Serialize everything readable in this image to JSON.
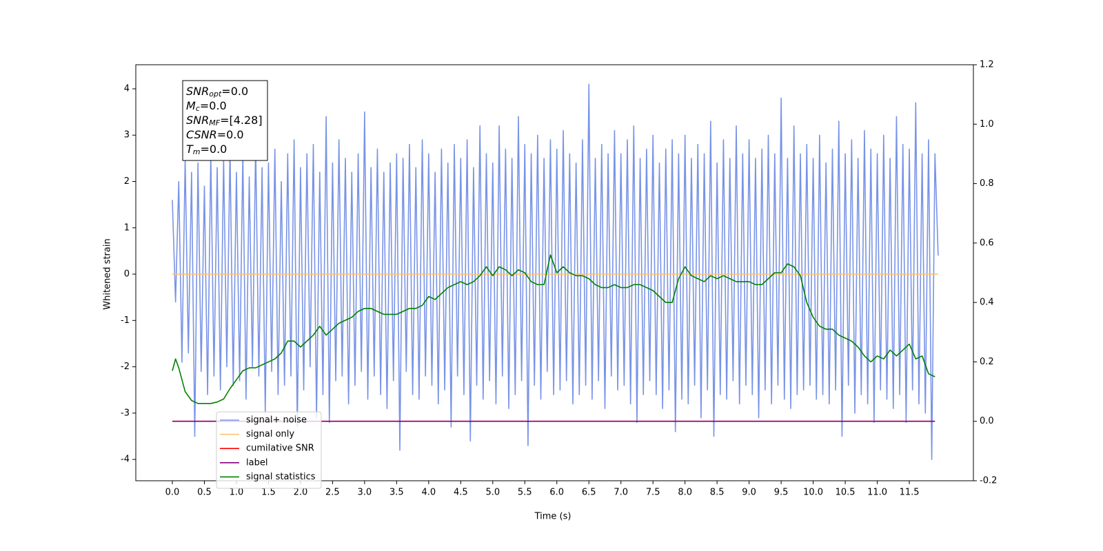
{
  "chart_data": {
    "type": "line",
    "xlabel": "Time (s)",
    "ylabel": "Whitened strain",
    "xlim": [
      -0.57,
      12.5
    ],
    "ylim": [
      -4.46,
      4.52
    ],
    "y2lim": [
      -0.2,
      1.2
    ],
    "xticks": [
      {
        "value": 0,
        "label": "0.0"
      },
      0.5,
      {
        "value": 1,
        "label": "1.0"
      },
      1.5,
      {
        "value": 2,
        "label": "2.0"
      },
      2.5,
      {
        "value": 3,
        "label": "3.0"
      },
      3.5,
      {
        "value": 4,
        "label": "4.0"
      },
      4.5,
      {
        "value": 5,
        "label": "5.0"
      },
      5.5,
      {
        "value": 6,
        "label": "6.0"
      },
      6.5,
      {
        "value": 7,
        "label": "7.0"
      },
      7.5,
      {
        "value": 8,
        "label": "8.0"
      },
      8.5,
      {
        "value": 9,
        "label": "9.0"
      },
      9.5,
      {
        "value": 10,
        "label": "10.0"
      },
      10.5,
      {
        "value": 11,
        "label": "11.0"
      },
      11.5
    ],
    "yticks": [
      -4,
      -3,
      -2,
      -1,
      0,
      1,
      2,
      3,
      4
    ],
    "y2ticks": [
      -0.2,
      {
        "value": 0,
        "label": "0.0"
      },
      0.2,
      0.4,
      0.6,
      0.8,
      {
        "value": 1,
        "label": "1.0"
      },
      1.2
    ],
    "legend": "lower left",
    "annotation": [
      {
        "symbol": "SNR",
        "sub": "opt",
        "text": "=0.0"
      },
      {
        "symbol": "M",
        "sub": "c",
        "text": "=0.0"
      },
      {
        "symbol": "SNR",
        "sub": "MF",
        "text": "=[4.28]"
      },
      {
        "symbol": "CSNR",
        "text": "=0.0"
      },
      {
        "symbol": "T",
        "sub": "m",
        "text": "=0.0"
      }
    ],
    "series": [
      {
        "name": "signal+ noise",
        "color": "#7893e6",
        "x": [
          0,
          0.05,
          0.1,
          0.15,
          0.2,
          0.25,
          0.3,
          0.35,
          0.4,
          0.45,
          0.5,
          0.55,
          0.6,
          0.65,
          0.7,
          0.75,
          0.8,
          0.85,
          0.9,
          0.95,
          1,
          1.05,
          1.1,
          1.15,
          1.2,
          1.25,
          1.3,
          1.35,
          1.4,
          1.45,
          1.5,
          1.55,
          1.6,
          1.65,
          1.7,
          1.75,
          1.8,
          1.85,
          1.9,
          1.95,
          2,
          2.05,
          2.1,
          2.15,
          2.2,
          2.25,
          2.3,
          2.35,
          2.4,
          2.45,
          2.5,
          2.55,
          2.6,
          2.65,
          2.7,
          2.75,
          2.8,
          2.85,
          2.9,
          2.95,
          3,
          3.05,
          3.1,
          3.15,
          3.2,
          3.25,
          3.3,
          3.35,
          3.4,
          3.45,
          3.5,
          3.55,
          3.6,
          3.65,
          3.7,
          3.75,
          3.8,
          3.85,
          3.9,
          3.95,
          4,
          4.05,
          4.1,
          4.15,
          4.2,
          4.25,
          4.3,
          4.35,
          4.4,
          4.45,
          4.5,
          4.55,
          4.6,
          4.65,
          4.7,
          4.75,
          4.8,
          4.85,
          4.9,
          4.95,
          5,
          5.05,
          5.1,
          5.15,
          5.2,
          5.25,
          5.3,
          5.35,
          5.4,
          5.45,
          5.5,
          5.55,
          5.6,
          5.65,
          5.7,
          5.75,
          5.8,
          5.85,
          5.9,
          5.95,
          6,
          6.05,
          6.1,
          6.15,
          6.2,
          6.25,
          6.3,
          6.35,
          6.4,
          6.45,
          6.5,
          6.55,
          6.6,
          6.65,
          6.7,
          6.75,
          6.8,
          6.85,
          6.9,
          6.95,
          7,
          7.05,
          7.1,
          7.15,
          7.2,
          7.25,
          7.3,
          7.35,
          7.4,
          7.45,
          7.5,
          7.55,
          7.6,
          7.65,
          7.7,
          7.75,
          7.8,
          7.85,
          7.9,
          7.95,
          8,
          8.05,
          8.1,
          8.15,
          8.2,
          8.25,
          8.3,
          8.35,
          8.4,
          8.45,
          8.5,
          8.55,
          8.6,
          8.65,
          8.7,
          8.75,
          8.8,
          8.85,
          8.9,
          8.95,
          9,
          9.05,
          9.1,
          9.15,
          9.2,
          9.25,
          9.3,
          9.35,
          9.4,
          9.45,
          9.5,
          9.55,
          9.6,
          9.65,
          9.7,
          9.75,
          9.8,
          9.85,
          9.9,
          9.95,
          10,
          10.05,
          10.1,
          10.15,
          10.2,
          10.25,
          10.3,
          10.35,
          10.4,
          10.45,
          10.5,
          10.55,
          10.6,
          10.65,
          10.7,
          10.75,
          10.8,
          10.85,
          10.9,
          10.95,
          11,
          11.05,
          11.1,
          11.15,
          11.2,
          11.25,
          11.3,
          11.35,
          11.4,
          11.45,
          11.5,
          11.55,
          11.6,
          11.65,
          11.7,
          11.75,
          11.8,
          11.85,
          11.9,
          11.95
        ],
        "values": [
          1.6,
          -0.6,
          2.0,
          -1.9,
          2.5,
          -1.7,
          2.2,
          -3.5,
          2.4,
          -2.1,
          1.9,
          -2.6,
          2.6,
          -2.2,
          2.3,
          -2.5,
          2.5,
          -2.0,
          2.7,
          -2.4,
          2.2,
          -2.3,
          2.6,
          -2.7,
          2.1,
          -2.0,
          2.8,
          -2.2,
          2.3,
          -3.0,
          2.4,
          -2.1,
          2.7,
          -2.6,
          2.0,
          -2.4,
          2.6,
          -2.2,
          2.9,
          -3.3,
          2.3,
          -2.5,
          2.6,
          -2.0,
          2.8,
          -3.1,
          2.2,
          -2.6,
          3.4,
          -3.2,
          2.4,
          -2.3,
          2.9,
          -2.2,
          2.5,
          -2.8,
          2.2,
          -2.4,
          2.6,
          -2.1,
          3.5,
          -2.7,
          2.3,
          -2.2,
          2.7,
          -2.6,
          2.2,
          -2.9,
          2.4,
          -2.3,
          2.6,
          -3.8,
          2.5,
          -2.1,
          2.8,
          -2.6,
          2.3,
          -2.7,
          2.9,
          -2.2,
          2.6,
          -2.4,
          2.2,
          -2.8,
          2.7,
          -2.5,
          2.4,
          -3.3,
          2.8,
          -2.2,
          2.5,
          -2.6,
          2.9,
          -3.6,
          2.3,
          -2.4,
          3.2,
          -2.7,
          2.6,
          -2.3,
          2.4,
          -2.8,
          3.2,
          -2.2,
          2.7,
          -2.9,
          2.5,
          -2.6,
          3.4,
          -2.3,
          2.8,
          -3.7,
          2.6,
          -2.4,
          3.0,
          -2.7,
          2.5,
          -2.1,
          2.9,
          -2.6,
          2.7,
          -2.5,
          3.1,
          -2.3,
          2.6,
          -2.8,
          2.4,
          -2.6,
          2.9,
          -2.4,
          4.1,
          -2.7,
          2.5,
          -2.3,
          2.8,
          -2.9,
          2.6,
          -2.2,
          3.1,
          -2.5,
          2.6,
          -2.4,
          2.9,
          -2.8,
          3.2,
          -3.2,
          2.5,
          -2.6,
          2.7,
          -2.3,
          3.0,
          -2.6,
          2.4,
          -2.9,
          2.7,
          -2.5,
          2.9,
          -3.4,
          2.6,
          -2.7,
          3.0,
          -2.8,
          2.5,
          -2.4,
          2.8,
          -3.1,
          2.6,
          -2.5,
          3.3,
          -3.5,
          2.4,
          -2.6,
          2.9,
          -2.7,
          2.5,
          -2.3,
          3.2,
          -2.8,
          2.6,
          -2.4,
          2.9,
          -2.6,
          2.5,
          -3.1,
          2.7,
          -2.5,
          3.0,
          -2.8,
          2.6,
          -2.4,
          3.8,
          -2.7,
          2.5,
          -2.9,
          3.2,
          -2.6,
          2.6,
          -2.5,
          2.8,
          -2.4,
          2.5,
          -2.7,
          3.0,
          -2.6,
          2.4,
          -2.8,
          2.7,
          -2.5,
          3.3,
          -3.5,
          2.6,
          -2.4,
          2.9,
          -3.0,
          2.5,
          -2.6,
          3.1,
          -2.8,
          2.7,
          -3.2,
          2.6,
          -2.5,
          3.0,
          -2.7,
          2.5,
          -2.9,
          3.4,
          -2.6,
          2.8,
          -3.2,
          2.7,
          -2.5,
          3.7,
          -2.8,
          2.6,
          -3.0,
          2.9,
          -4.0,
          2.6,
          0.4
        ]
      },
      {
        "name": "signal only",
        "color": "#ffc170",
        "x": [
          0,
          11.95
        ],
        "values": [
          0,
          0
        ]
      },
      {
        "name": "cumilative SNR",
        "color": "#ff0000",
        "axis": "y2",
        "x": [
          0,
          11.9
        ],
        "values": [
          0,
          0
        ]
      },
      {
        "name": "label",
        "color": "#800080",
        "axis": "y2",
        "x": [
          0,
          11.9
        ],
        "values": [
          0,
          0
        ]
      },
      {
        "name": "signal statistics",
        "color": "#008000",
        "axis": "y2",
        "x": [
          0,
          0.05,
          0.1,
          0.2,
          0.3,
          0.4,
          0.5,
          0.6,
          0.7,
          0.8,
          0.9,
          1,
          1.1,
          1.2,
          1.3,
          1.4,
          1.5,
          1.6,
          1.7,
          1.8,
          1.9,
          2,
          2.1,
          2.2,
          2.3,
          2.4,
          2.5,
          2.6,
          2.7,
          2.8,
          2.9,
          3,
          3.1,
          3.2,
          3.3,
          3.4,
          3.5,
          3.6,
          3.7,
          3.8,
          3.9,
          4,
          4.1,
          4.2,
          4.3,
          4.4,
          4.5,
          4.6,
          4.7,
          4.8,
          4.9,
          5,
          5.1,
          5.2,
          5.3,
          5.4,
          5.5,
          5.6,
          5.7,
          5.8,
          5.9,
          6,
          6.1,
          6.2,
          6.3,
          6.4,
          6.5,
          6.6,
          6.7,
          6.8,
          6.9,
          7,
          7.1,
          7.2,
          7.3,
          7.4,
          7.5,
          7.6,
          7.7,
          7.8,
          7.9,
          8,
          8.1,
          8.2,
          8.3,
          8.4,
          8.5,
          8.6,
          8.7,
          8.8,
          8.9,
          9,
          9.1,
          9.2,
          9.3,
          9.4,
          9.5,
          9.6,
          9.7,
          9.8,
          9.9,
          10,
          10.1,
          10.2,
          10.3,
          10.4,
          10.5,
          10.6,
          10.7,
          10.8,
          10.9,
          11,
          11.1,
          11.2,
          11.3,
          11.4,
          11.5,
          11.6,
          11.7,
          11.8,
          11.9
        ],
        "values": [
          0.17,
          0.21,
          0.18,
          0.1,
          0.07,
          0.06,
          0.06,
          0.06,
          0.065,
          0.075,
          0.11,
          0.14,
          0.17,
          0.18,
          0.18,
          0.19,
          0.2,
          0.21,
          0.23,
          0.27,
          0.27,
          0.25,
          0.27,
          0.29,
          0.32,
          0.29,
          0.31,
          0.33,
          0.34,
          0.35,
          0.37,
          0.38,
          0.38,
          0.37,
          0.36,
          0.36,
          0.36,
          0.37,
          0.38,
          0.38,
          0.39,
          0.42,
          0.41,
          0.43,
          0.45,
          0.46,
          0.47,
          0.46,
          0.47,
          0.49,
          0.52,
          0.49,
          0.52,
          0.51,
          0.49,
          0.51,
          0.5,
          0.47,
          0.46,
          0.46,
          0.56,
          0.5,
          0.52,
          0.5,
          0.49,
          0.49,
          0.48,
          0.46,
          0.45,
          0.45,
          0.46,
          0.45,
          0.45,
          0.46,
          0.46,
          0.45,
          0.44,
          0.42,
          0.4,
          0.4,
          0.48,
          0.52,
          0.49,
          0.48,
          0.47,
          0.49,
          0.48,
          0.49,
          0.48,
          0.47,
          0.47,
          0.47,
          0.46,
          0.46,
          0.48,
          0.5,
          0.5,
          0.53,
          0.52,
          0.49,
          0.4,
          0.35,
          0.32,
          0.31,
          0.31,
          0.29,
          0.28,
          0.27,
          0.25,
          0.22,
          0.2,
          0.22,
          0.21,
          0.24,
          0.22,
          0.24,
          0.26,
          0.21,
          0.22,
          0.16,
          0.15
        ]
      }
    ]
  }
}
